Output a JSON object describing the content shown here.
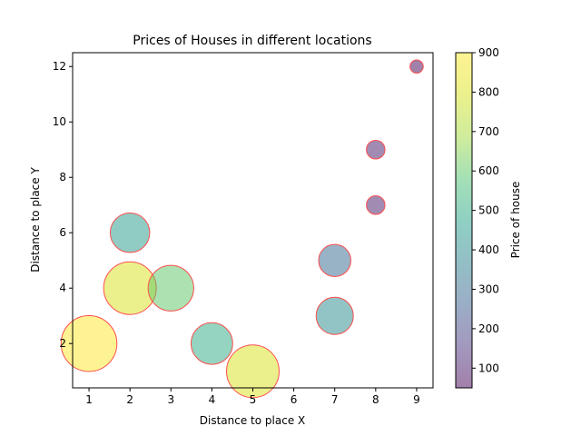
{
  "chart_data": {
    "type": "scatter",
    "title": "Prices of Houses in different locations",
    "xlabel": "Distance to place X",
    "ylabel": "Distance to place Y",
    "xlim": [
      0.6,
      9.4
    ],
    "ylim": [
      0.4,
      12.5
    ],
    "x_ticks": [
      1,
      2,
      3,
      4,
      5,
      6,
      7,
      8,
      9
    ],
    "y_ticks": [
      2,
      4,
      6,
      8,
      10,
      12
    ],
    "grid": false,
    "points": [
      {
        "x": 1,
        "y": 2,
        "price": 900
      },
      {
        "x": 2,
        "y": 4,
        "price": 800
      },
      {
        "x": 2,
        "y": 6,
        "price": 450
      },
      {
        "x": 3,
        "y": 4,
        "price": 600
      },
      {
        "x": 4,
        "y": 2,
        "price": 500
      },
      {
        "x": 5,
        "y": 1,
        "price": 800
      },
      {
        "x": 7,
        "y": 3,
        "price": 400
      },
      {
        "x": 7,
        "y": 5,
        "price": 300
      },
      {
        "x": 8,
        "y": 7,
        "price": 100
      },
      {
        "x": 8,
        "y": 9,
        "price": 100
      },
      {
        "x": 9,
        "y": 12,
        "price": 50
      }
    ],
    "marker_edge_color": "#ff4d4d",
    "marker_alpha": 0.5,
    "colorbar": {
      "label": "Price of house",
      "min": 50,
      "max": 900,
      "ticks": [
        100,
        200,
        300,
        400,
        500,
        600,
        700,
        800,
        900
      ],
      "colormap": "viridis"
    }
  }
}
